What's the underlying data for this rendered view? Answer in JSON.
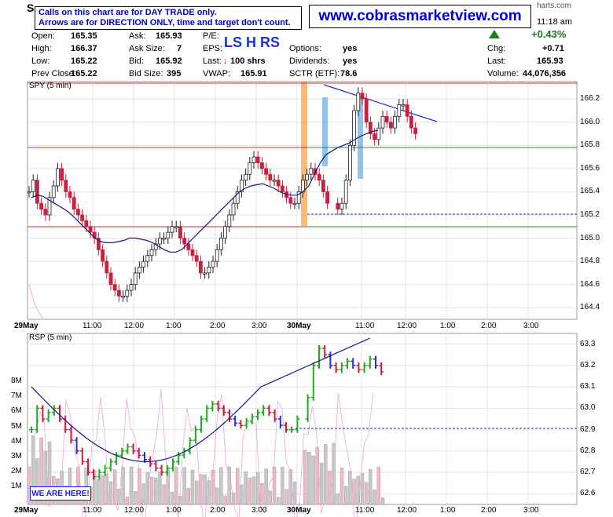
{
  "header": {
    "symbol_fragment": "S",
    "notice_line1": "Calls on this chart are for DAY TRADE only.",
    "notice_line2": "Arrows are for DIRECTION ONLY, time and target don't count.",
    "website": "www.cobrasmarketview.com",
    "brand_fragment": "harts.com",
    "time": "11:18 am",
    "quote": {
      "open_label": "Open:",
      "open": "165.35",
      "high_label": "High:",
      "high": "166.37",
      "low_label": "Low:",
      "low": "165.22",
      "prevclose_label": "Prev Close:",
      "prevclose": "165.22",
      "ask_label": "Ask:",
      "ask": "165.93",
      "asksize_label": "Ask Size:",
      "asksize": "7",
      "bid_label": "Bid:",
      "bid": "165.92",
      "bidsize_label": "Bid Size:",
      "bidsize": "395",
      "pe_label": "P/E:",
      "eps_label": "EPS:",
      "last_label": "Last:",
      "last_shrs": "100 shrs",
      "vwap_label": "VWAP:",
      "vwap": "165.91",
      "options_label": "Options:",
      "options": "yes",
      "dividends_label": "Dividends:",
      "dividends": "yes",
      "sctr_label": "SCTR (ETF):",
      "sctr": "78.6",
      "pct_change": "+0.43%",
      "chg_label": "Chg:",
      "chg": "+0.71",
      "last2_label": "Last:",
      "last2": "165.93",
      "volume_label": "Volume:",
      "volume": "44,076,356"
    },
    "ls_text": "LS H  RS"
  },
  "colors": {
    "up": "#2a9a2a",
    "down": "#cc1f3c",
    "navy": "#15158a",
    "trend": "#1d2cd8",
    "orange_band": "#f6ae62",
    "blue_band": "#7fb7ea",
    "red_line": "#c33333",
    "green_line": "#2b8a2b",
    "rsp_green": "#22aa22",
    "rsp_blue": "#2233cc"
  },
  "price_panel": {
    "title": "SPY (5 min)",
    "y_ticks": [
      "166.2",
      "166.0",
      "165.8",
      "165.6",
      "165.4",
      "165.2",
      "165.0",
      "164.8",
      "164.6",
      "164.4"
    ],
    "x_ticks": [
      "29May",
      "11:00",
      "12:00",
      "1:00",
      "2:00",
      "3:00",
      "30May",
      "11:00",
      "12:00",
      "1:00",
      "2:00",
      "3:00"
    ]
  },
  "rsp_panel": {
    "title": "RSP (5 min)",
    "y_ticks": [
      "63.3",
      "63.2",
      "63.1",
      "63.0",
      "62.9",
      "62.8",
      "62.7",
      "62.6"
    ],
    "vol_ticks": [
      "8M",
      "7M",
      "6M",
      "5M",
      "4M",
      "3M",
      "2M",
      "1M"
    ],
    "x_ticks": [
      "29May",
      "11:00",
      "12:00",
      "1:00",
      "2:00",
      "3:00",
      "30May",
      "11:00",
      "12:00",
      "1:00",
      "2:00",
      "3:00"
    ],
    "here_label": "WE ARE HERE!"
  },
  "chart_data": [
    {
      "type": "line",
      "title": "SPY (5 min)",
      "ylim": [
        164.3,
        166.35
      ],
      "levels": {
        "resistance": 166.37,
        "support_top": 165.8,
        "support_bottom": 165.15,
        "dashed": 165.22
      },
      "close": [
        165.4,
        165.5,
        165.3,
        165.25,
        165.2,
        165.35,
        165.45,
        165.6,
        165.5,
        165.4,
        165.35,
        165.25,
        165.2,
        165.15,
        165.1,
        165.05,
        165.0,
        164.9,
        164.8,
        164.7,
        164.6,
        164.55,
        164.5,
        164.5,
        164.55,
        164.6,
        164.7,
        164.75,
        164.8,
        164.85,
        164.9,
        164.95,
        165.0,
        165.0,
        165.05,
        165.1,
        165.1,
        165.0,
        164.95,
        164.9,
        164.85,
        164.8,
        164.7,
        164.7,
        164.75,
        164.8,
        164.9,
        165.0,
        165.1,
        165.2,
        165.3,
        165.4,
        165.5,
        165.55,
        165.65,
        165.7,
        165.65,
        165.6,
        165.55,
        165.5,
        165.5,
        165.45,
        165.4,
        165.35,
        165.3,
        165.3,
        165.4,
        165.5,
        165.55,
        165.6,
        165.55,
        165.5,
        165.4,
        165.3,
        165.25,
        165.3,
        165.5,
        165.8,
        166.1,
        166.25,
        166.2,
        166.0,
        165.9,
        165.85,
        165.95,
        166.05,
        166.0,
        165.95,
        166.05,
        166.15,
        166.15,
        166.05,
        165.95,
        165.9
      ],
      "vwap": [
        165.35,
        165.37,
        165.36,
        165.33,
        165.3,
        165.27,
        165.24,
        165.2,
        165.15,
        165.1,
        165.05,
        165.0,
        164.97,
        164.96,
        164.96,
        164.97,
        164.98,
        165.0,
        165.0,
        164.99,
        164.98,
        164.96,
        164.93,
        164.9,
        164.88,
        164.88,
        164.9,
        164.95,
        165.0,
        165.05,
        165.1,
        165.15,
        165.2,
        165.25,
        165.3,
        165.35,
        165.4,
        165.43,
        165.45,
        165.46,
        165.47,
        165.45,
        165.43,
        165.4,
        165.38,
        165.37,
        165.37,
        165.4,
        165.45,
        165.55,
        165.65,
        165.72,
        165.75,
        165.78,
        165.8,
        165.82,
        165.85,
        165.88,
        165.9,
        165.92,
        165.93
      ]
    },
    {
      "type": "line",
      "title": "RSP (5 min)",
      "ylim": [
        62.55,
        63.35
      ],
      "close": [
        62.9,
        63.0,
        62.95,
        62.98,
        63.0,
        62.95,
        62.9,
        62.85,
        62.8,
        62.75,
        62.7,
        62.68,
        62.7,
        62.72,
        62.75,
        62.78,
        62.8,
        62.82,
        62.8,
        62.78,
        62.76,
        62.74,
        62.72,
        62.7,
        62.72,
        62.75,
        62.78,
        62.8,
        62.85,
        62.9,
        62.95,
        63.0,
        63.02,
        63.0,
        62.98,
        62.95,
        62.93,
        62.92,
        62.94,
        62.96,
        62.98,
        63.0,
        62.98,
        62.95,
        62.92,
        62.9,
        62.9,
        62.95,
        63.05,
        63.2,
        63.28,
        63.25,
        63.2,
        63.18,
        63.2,
        63.22,
        63.2,
        63.18,
        63.2,
        63.23,
        63.2,
        63.17
      ]
    }
  ]
}
